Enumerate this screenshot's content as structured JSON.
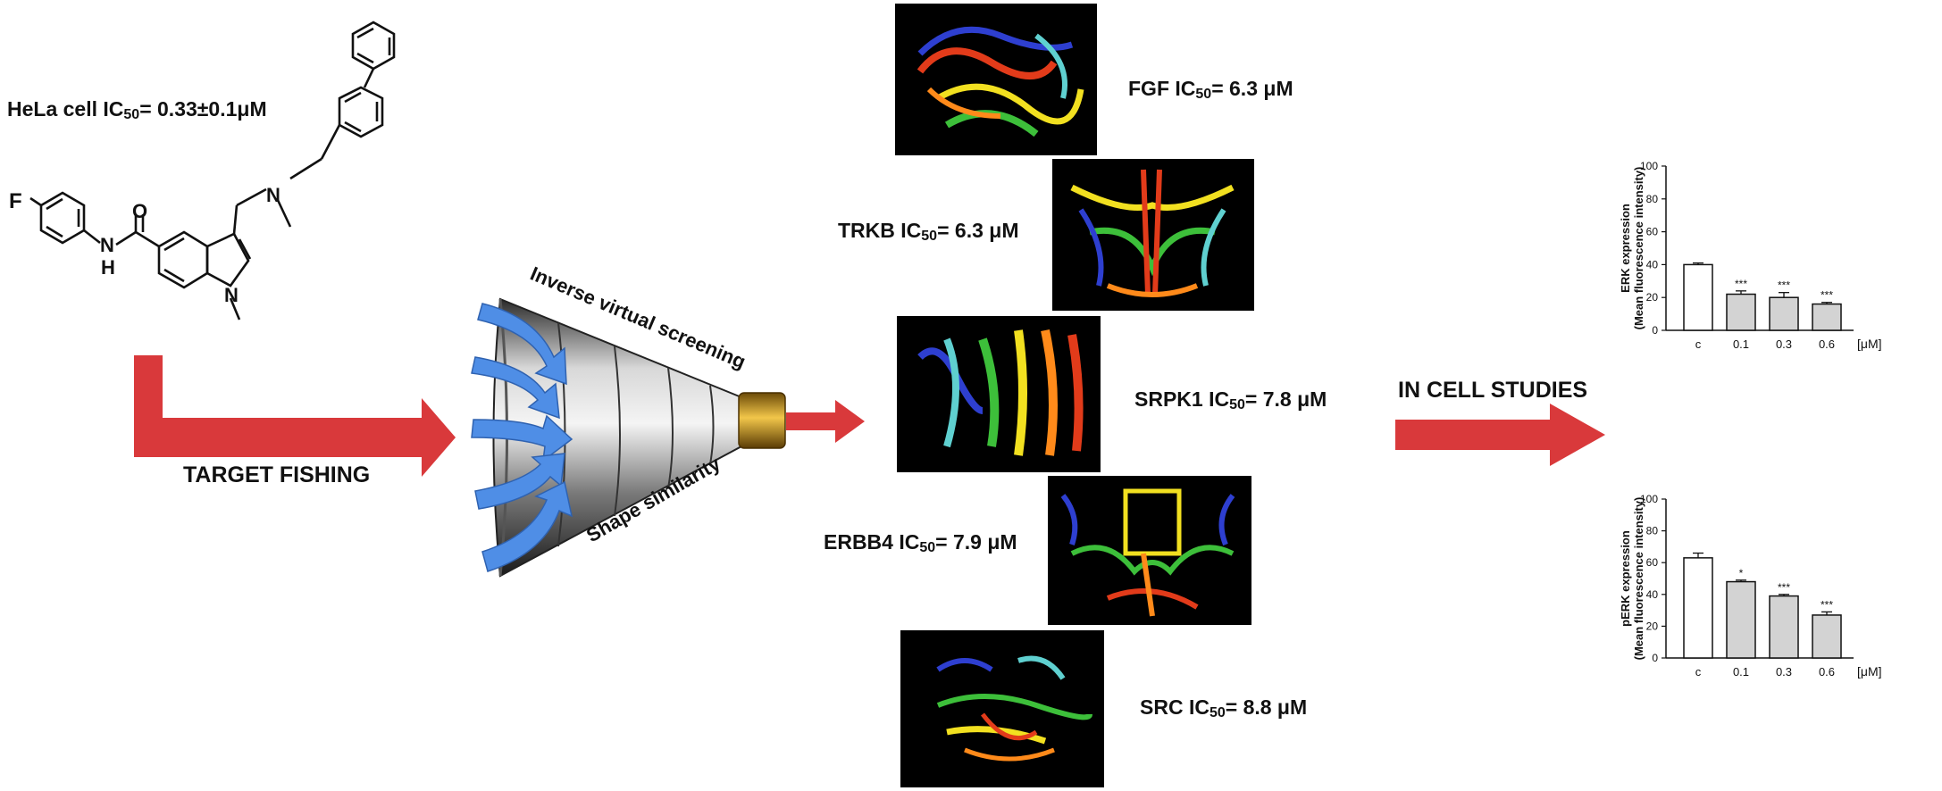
{
  "molecule": {
    "hela_label": "HeLa cell IC",
    "hela_sub": "50",
    "hela_value": "= 0.33±0.1μM",
    "atoms": {
      "F": "F",
      "O": "O",
      "N_amide": "N",
      "H_amide": "H",
      "N_ring": "N",
      "N_amine": "N"
    }
  },
  "flow": {
    "target_fishing": "TARGET FISHING",
    "funnel_top": "Inverse virtual screening",
    "funnel_bottom": "Shape similarity",
    "in_cell": "IN CELL STUDIES"
  },
  "targets": [
    {
      "name": "FGF",
      "ic": "IC",
      "sub": "50",
      "value": "= 6.3 μM"
    },
    {
      "name": "TRKB",
      "ic": "IC",
      "sub": "50",
      "value": "= 6.3 μM"
    },
    {
      "name": "SRPK1",
      "ic": "IC",
      "sub": "50",
      "value": "= 7.8 μM"
    },
    {
      "name": "ERBB4",
      "ic": "IC",
      "sub": "50",
      "value": "= 7.9 μM"
    },
    {
      "name": "SRC",
      "ic": "IC",
      "sub": "50",
      "value": "= 8.8 μM"
    }
  ],
  "chart_data": [
    {
      "type": "bar",
      "ylabel": "ERK expression",
      "ylabel2": "(Mean fluorescence intensity)",
      "unit": "[μM]",
      "categories": [
        "c",
        "0.1",
        "0.3",
        "0.6"
      ],
      "values": [
        40,
        22,
        20,
        16
      ],
      "errors": [
        1,
        2,
        3,
        1
      ],
      "significance": [
        "",
        "***",
        "***",
        "***"
      ],
      "yticks": [
        "0",
        "20",
        "40",
        "60",
        "80",
        "100"
      ],
      "ylim": [
        0,
        100
      ],
      "colors": {
        "control": "#ffffff",
        "treated": "#d3d3d3"
      }
    },
    {
      "type": "bar",
      "ylabel": "pERK expression",
      "ylabel2": "(Mean fluorescence intensity)",
      "unit": "[μM]",
      "categories": [
        "c",
        "0.1",
        "0.3",
        "0.6"
      ],
      "values": [
        63,
        48,
        39,
        27
      ],
      "errors": [
        3,
        1,
        1,
        2
      ],
      "significance": [
        "",
        "*",
        "***",
        "***"
      ],
      "yticks": [
        "0",
        "20",
        "40",
        "60",
        "80",
        "100"
      ],
      "ylim": [
        0,
        100
      ],
      "colors": {
        "control": "#ffffff",
        "treated": "#d3d3d3"
      }
    }
  ],
  "colors": {
    "arrow": "#d9393b",
    "blue_arrow": "#4f8ee6",
    "funnel_tip": "#d9a520"
  }
}
